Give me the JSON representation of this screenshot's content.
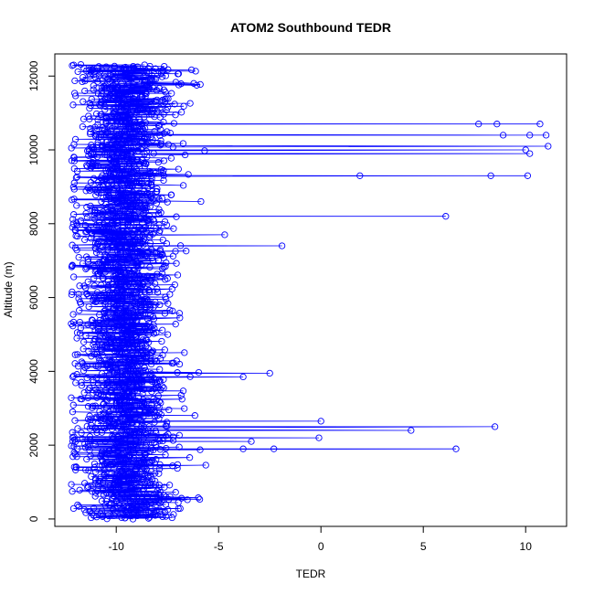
{
  "chart_data": {
    "type": "scatter",
    "title": "ATOM2 Southbound TEDR",
    "xlabel": "TEDR",
    "ylabel": "Altitude (m)",
    "xlim": [
      -13,
      12
    ],
    "ylim": [
      -200,
      12600
    ],
    "xticks": [
      -10,
      -5,
      0,
      5,
      10
    ],
    "yticks": [
      0,
      2000,
      4000,
      6000,
      8000,
      10000,
      12000
    ],
    "grid": false,
    "legend": "none",
    "series": [
      {
        "color": "#0000ff",
        "marker": "open-circle",
        "line": true,
        "note_points": [
          {
            "x": 8.6,
            "y": 10700
          },
          {
            "x": 7.7,
            "y": 10700
          },
          {
            "x": 10.7,
            "y": 10700
          },
          {
            "x": 11.0,
            "y": 10400
          },
          {
            "x": 10.2,
            "y": 10400
          },
          {
            "x": 8.9,
            "y": 10400
          },
          {
            "x": 11.1,
            "y": 10100
          },
          {
            "x": 10.0,
            "y": 10000
          },
          {
            "x": 10.2,
            "y": 9900
          },
          {
            "x": 8.3,
            "y": 9300
          },
          {
            "x": 10.1,
            "y": 9300
          },
          {
            "x": 1.9,
            "y": 9300
          },
          {
            "x": 6.1,
            "y": 8200
          },
          {
            "x": -4.7,
            "y": 7700
          },
          {
            "x": -1.9,
            "y": 7400
          },
          {
            "x": -2.5,
            "y": 3950
          },
          {
            "x": -3.8,
            "y": 3850
          },
          {
            "x": 0.0,
            "y": 2650
          },
          {
            "x": 8.5,
            "y": 2500
          },
          {
            "x": 4.4,
            "y": 2400
          },
          {
            "x": -0.1,
            "y": 2200
          },
          {
            "x": -3.4,
            "y": 2100
          },
          {
            "x": 6.6,
            "y": 1900
          },
          {
            "x": -2.3,
            "y": 1900
          },
          {
            "x": -3.8,
            "y": 1900
          }
        ]
      }
    ]
  }
}
